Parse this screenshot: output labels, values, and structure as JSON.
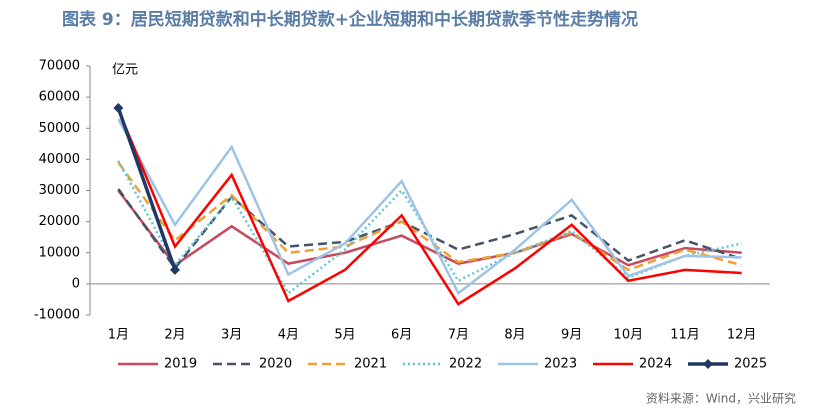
{
  "chart_data": {
    "type": "line",
    "title": "图表 9：居民短期贷款和中长期贷款+企业短期和中长期贷款季节性走势情况",
    "y_unit": "亿元",
    "source": "资料来源：Wind，兴业研究",
    "categories": [
      "1月",
      "2月",
      "3月",
      "4月",
      "5月",
      "6月",
      "7月",
      "8月",
      "9月",
      "10月",
      "11月",
      "12月"
    ],
    "ylim": [
      -10000,
      70000
    ],
    "yticks": [
      -10000,
      0,
      10000,
      20000,
      30000,
      40000,
      50000,
      60000,
      70000
    ],
    "legend": "bottom",
    "series": [
      {
        "name": "2019",
        "color": "#c9485b",
        "style": "solid",
        "values": [
          30000,
          6000,
          18500,
          6500,
          10000,
          15500,
          6500,
          10000,
          16000,
          6000,
          11500,
          10000
        ]
      },
      {
        "name": "2020",
        "color": "#44546a",
        "style": "dashed",
        "values": [
          30500,
          5000,
          28000,
          12000,
          13500,
          20000,
          11000,
          16000,
          22000,
          7500,
          14000,
          8000
        ]
      },
      {
        "name": "2021",
        "color": "#f0a030",
        "style": "dashed",
        "values": [
          39000,
          14000,
          28500,
          10000,
          12000,
          20000,
          7000,
          10000,
          16500,
          4500,
          11000,
          6000
        ]
      },
      {
        "name": "2022",
        "color": "#5bc8d0",
        "style": "dotted",
        "values": [
          39500,
          6000,
          28000,
          -3000,
          11000,
          30000,
          1000,
          10000,
          17000,
          2000,
          9000,
          13000
        ]
      },
      {
        "name": "2023",
        "color": "#9dc3e6",
        "style": "solid",
        "values": [
          53000,
          19000,
          44000,
          3000,
          13000,
          33000,
          -3000,
          11000,
          27000,
          2500,
          9000,
          8500
        ]
      },
      {
        "name": "2024",
        "color": "#ff0000",
        "style": "solid",
        "values": [
          56000,
          12000,
          35000,
          -5500,
          4500,
          22000,
          -6500,
          5000,
          19000,
          1000,
          4500,
          3500
        ]
      },
      {
        "name": "2025",
        "color": "#203864",
        "style": "solid",
        "marker": "diamond",
        "values": [
          56500,
          4500,
          null,
          null,
          null,
          null,
          null,
          null,
          null,
          null,
          null,
          null
        ]
      }
    ]
  }
}
